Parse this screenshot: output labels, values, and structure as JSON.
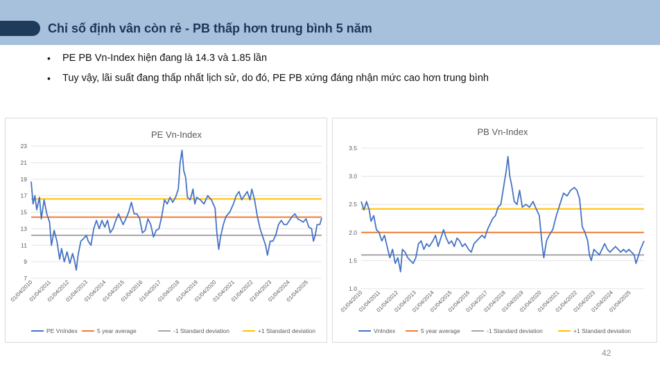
{
  "header": {
    "title": "Chỉ số định vân còn rẻ - PB thấp hơn trung bình 5 năm"
  },
  "bullets": [
    "PE PB Vn-Index hiện đang là 14.3 và 1.85 lần",
    "Tuy vậy, lãi suất đang thấp nhất lịch sử, do đó, PE PB xứng đáng nhận mức cao hơn trung bình"
  ],
  "page_number": "42",
  "colors": {
    "header_bg": "#a7c0dc",
    "header_tab": "#1f3b5c",
    "title": "#1a3558",
    "series": "#4472c4",
    "average": "#ed7d31",
    "minus_sd": "#a5a5a5",
    "plus_sd": "#ffc000"
  },
  "chart_data": [
    {
      "type": "line",
      "title": "PE Vn-Index",
      "xlabel": "",
      "ylabel": "",
      "ylim": [
        7,
        23
      ],
      "y_ticks": [
        "7",
        "9",
        "11",
        "13",
        "15",
        "17",
        "19",
        "21",
        "23"
      ],
      "x_ticks": [
        "01/04/2010",
        "01/04/2011",
        "01/04/2012",
        "01/04/2013",
        "01/04/2014",
        "01/04/2015",
        "01/04/2016",
        "01/04/2017",
        "01/04/2018",
        "01/04/2019",
        "01/04/2020",
        "01/04/2021",
        "01/04/2022",
        "01/04/2023",
        "01/04/2024",
        "01/04/2025"
      ],
      "x_range": [
        2010.0,
        2025.8
      ],
      "grid": "horizontal",
      "legend_position": "bottom",
      "series": [
        {
          "name": "PE VnIndex",
          "color": "#4472c4",
          "points": [
            [
              2010.0,
              18.7
            ],
            [
              2010.1,
              16.0
            ],
            [
              2010.2,
              17.0
            ],
            [
              2010.3,
              15.3
            ],
            [
              2010.45,
              16.8
            ],
            [
              2010.55,
              14.2
            ],
            [
              2010.7,
              16.5
            ],
            [
              2010.85,
              14.8
            ],
            [
              2011.0,
              13.8
            ],
            [
              2011.1,
              11.0
            ],
            [
              2011.25,
              12.8
            ],
            [
              2011.4,
              11.5
            ],
            [
              2011.55,
              9.3
            ],
            [
              2011.65,
              10.6
            ],
            [
              2011.8,
              9.0
            ],
            [
              2011.95,
              10.2
            ],
            [
              2012.1,
              8.8
            ],
            [
              2012.25,
              10.0
            ],
            [
              2012.35,
              9.2
            ],
            [
              2012.45,
              8.0
            ],
            [
              2012.55,
              9.8
            ],
            [
              2012.7,
              11.5
            ],
            [
              2012.85,
              11.8
            ],
            [
              2013.0,
              12.2
            ],
            [
              2013.1,
              11.5
            ],
            [
              2013.25,
              11.0
            ],
            [
              2013.4,
              13.0
            ],
            [
              2013.55,
              14.0
            ],
            [
              2013.7,
              13.0
            ],
            [
              2013.85,
              14.0
            ],
            [
              2014.0,
              13.2
            ],
            [
              2014.15,
              14.0
            ],
            [
              2014.3,
              12.5
            ],
            [
              2014.45,
              13.0
            ],
            [
              2014.6,
              14.0
            ],
            [
              2014.75,
              14.8
            ],
            [
              2014.9,
              14.0
            ],
            [
              2015.0,
              13.5
            ],
            [
              2015.15,
              14.2
            ],
            [
              2015.3,
              15.0
            ],
            [
              2015.45,
              16.2
            ],
            [
              2015.6,
              14.8
            ],
            [
              2015.75,
              14.8
            ],
            [
              2015.9,
              14.2
            ],
            [
              2016.05,
              12.5
            ],
            [
              2016.2,
              12.8
            ],
            [
              2016.35,
              14.2
            ],
            [
              2016.5,
              13.5
            ],
            [
              2016.65,
              12.0
            ],
            [
              2016.8,
              12.8
            ],
            [
              2016.95,
              13.0
            ],
            [
              2017.1,
              14.5
            ],
            [
              2017.25,
              16.5
            ],
            [
              2017.4,
              16.0
            ],
            [
              2017.55,
              16.8
            ],
            [
              2017.7,
              16.2
            ],
            [
              2017.85,
              16.8
            ],
            [
              2018.0,
              17.8
            ],
            [
              2018.1,
              21.0
            ],
            [
              2018.2,
              22.5
            ],
            [
              2018.3,
              20.0
            ],
            [
              2018.4,
              19.2
            ],
            [
              2018.5,
              16.8
            ],
            [
              2018.65,
              16.5
            ],
            [
              2018.8,
              17.8
            ],
            [
              2018.9,
              16.0
            ],
            [
              2019.0,
              16.8
            ],
            [
              2019.2,
              16.5
            ],
            [
              2019.4,
              16.0
            ],
            [
              2019.6,
              17.0
            ],
            [
              2019.8,
              16.5
            ],
            [
              2020.0,
              15.5
            ],
            [
              2020.1,
              12.5
            ],
            [
              2020.2,
              10.5
            ],
            [
              2020.3,
              12.0
            ],
            [
              2020.45,
              13.5
            ],
            [
              2020.6,
              14.5
            ],
            [
              2020.8,
              15.0
            ],
            [
              2021.0,
              16.0
            ],
            [
              2021.15,
              17.0
            ],
            [
              2021.3,
              17.5
            ],
            [
              2021.45,
              16.5
            ],
            [
              2021.6,
              17.0
            ],
            [
              2021.75,
              17.5
            ],
            [
              2021.9,
              16.5
            ],
            [
              2022.0,
              17.8
            ],
            [
              2022.15,
              16.5
            ],
            [
              2022.3,
              14.5
            ],
            [
              2022.45,
              13.0
            ],
            [
              2022.6,
              12.0
            ],
            [
              2022.75,
              11.0
            ],
            [
              2022.85,
              9.8
            ],
            [
              2023.0,
              11.5
            ],
            [
              2023.15,
              11.5
            ],
            [
              2023.3,
              12.2
            ],
            [
              2023.45,
              13.5
            ],
            [
              2023.6,
              14.0
            ],
            [
              2023.75,
              13.5
            ],
            [
              2023.9,
              13.5
            ],
            [
              2024.05,
              14.0
            ],
            [
              2024.2,
              14.5
            ],
            [
              2024.35,
              14.8
            ],
            [
              2024.5,
              14.2
            ],
            [
              2024.65,
              14.0
            ],
            [
              2024.8,
              13.8
            ],
            [
              2024.95,
              14.2
            ],
            [
              2025.1,
              13.2
            ],
            [
              2025.25,
              13.0
            ],
            [
              2025.35,
              11.5
            ],
            [
              2025.45,
              12.2
            ],
            [
              2025.55,
              13.5
            ],
            [
              2025.7,
              13.5
            ],
            [
              2025.8,
              14.3
            ]
          ]
        },
        {
          "name": "5 year average",
          "color": "#ed7d31",
          "value": 14.4
        },
        {
          "name": "-1 Standard deviation",
          "color": "#a5a5a5",
          "value": 12.2
        },
        {
          "name": "+1 Standard deviation",
          "color": "#ffc000",
          "value": 16.6
        }
      ]
    },
    {
      "type": "line",
      "title": "PB Vn-Index",
      "xlabel": "",
      "ylabel": "",
      "ylim": [
        1.0,
        3.5
      ],
      "y_ticks": [
        "1.0",
        "1.5",
        "2.0",
        "2.5",
        "3.0",
        "3.5"
      ],
      "x_ticks": [
        "01/04/2010",
        "01/04/2011",
        "01/04/2012",
        "01/04/2013",
        "01/04/2014",
        "01/04/2015",
        "01/04/2016",
        "01/04/2017",
        "01/04/2018",
        "01/04/2019",
        "01/04/2020",
        "01/04/2021",
        "01/04/2022",
        "01/04/2023",
        "01/04/2024",
        "01/04/2025"
      ],
      "x_range": [
        2010.0,
        2025.8
      ],
      "grid": "horizontal",
      "legend_position": "bottom",
      "series": [
        {
          "name": "VnIndex",
          "color": "#4472c4",
          "points": [
            [
              2010.0,
              2.55
            ],
            [
              2010.15,
              2.4
            ],
            [
              2010.3,
              2.55
            ],
            [
              2010.45,
              2.4
            ],
            [
              2010.55,
              2.2
            ],
            [
              2010.7,
              2.3
            ],
            [
              2010.85,
              2.05
            ],
            [
              2011.0,
              2.0
            ],
            [
              2011.15,
              1.85
            ],
            [
              2011.3,
              1.95
            ],
            [
              2011.45,
              1.75
            ],
            [
              2011.6,
              1.55
            ],
            [
              2011.75,
              1.7
            ],
            [
              2011.9,
              1.45
            ],
            [
              2012.05,
              1.55
            ],
            [
              2012.2,
              1.3
            ],
            [
              2012.3,
              1.7
            ],
            [
              2012.45,
              1.65
            ],
            [
              2012.6,
              1.55
            ],
            [
              2012.75,
              1.5
            ],
            [
              2012.9,
              1.45
            ],
            [
              2013.05,
              1.55
            ],
            [
              2013.2,
              1.8
            ],
            [
              2013.35,
              1.85
            ],
            [
              2013.5,
              1.7
            ],
            [
              2013.65,
              1.8
            ],
            [
              2013.8,
              1.75
            ],
            [
              2014.0,
              1.85
            ],
            [
              2014.15,
              1.95
            ],
            [
              2014.3,
              1.75
            ],
            [
              2014.45,
              1.9
            ],
            [
              2014.6,
              2.05
            ],
            [
              2014.75,
              1.9
            ],
            [
              2014.9,
              1.8
            ],
            [
              2015.05,
              1.85
            ],
            [
              2015.2,
              1.75
            ],
            [
              2015.35,
              1.9
            ],
            [
              2015.5,
              1.85
            ],
            [
              2015.65,
              1.75
            ],
            [
              2015.8,
              1.8
            ],
            [
              2016.0,
              1.7
            ],
            [
              2016.15,
              1.65
            ],
            [
              2016.3,
              1.8
            ],
            [
              2016.45,
              1.85
            ],
            [
              2016.6,
              1.9
            ],
            [
              2016.75,
              1.95
            ],
            [
              2016.9,
              1.9
            ],
            [
              2017.05,
              2.05
            ],
            [
              2017.2,
              2.15
            ],
            [
              2017.35,
              2.25
            ],
            [
              2017.5,
              2.3
            ],
            [
              2017.65,
              2.45
            ],
            [
              2017.8,
              2.5
            ],
            [
              2017.95,
              2.8
            ],
            [
              2018.1,
              3.1
            ],
            [
              2018.2,
              3.35
            ],
            [
              2018.3,
              3.0
            ],
            [
              2018.4,
              2.85
            ],
            [
              2018.55,
              2.55
            ],
            [
              2018.7,
              2.5
            ],
            [
              2018.85,
              2.75
            ],
            [
              2019.0,
              2.45
            ],
            [
              2019.2,
              2.5
            ],
            [
              2019.4,
              2.45
            ],
            [
              2019.6,
              2.55
            ],
            [
              2019.8,
              2.4
            ],
            [
              2019.95,
              2.3
            ],
            [
              2020.1,
              1.8
            ],
            [
              2020.2,
              1.55
            ],
            [
              2020.35,
              1.85
            ],
            [
              2020.5,
              1.95
            ],
            [
              2020.7,
              2.05
            ],
            [
              2020.9,
              2.3
            ],
            [
              2021.1,
              2.5
            ],
            [
              2021.3,
              2.7
            ],
            [
              2021.5,
              2.65
            ],
            [
              2021.7,
              2.75
            ],
            [
              2021.9,
              2.8
            ],
            [
              2022.05,
              2.75
            ],
            [
              2022.2,
              2.6
            ],
            [
              2022.35,
              2.1
            ],
            [
              2022.5,
              2.0
            ],
            [
              2022.65,
              1.85
            ],
            [
              2022.75,
              1.6
            ],
            [
              2022.85,
              1.5
            ],
            [
              2023.0,
              1.7
            ],
            [
              2023.15,
              1.65
            ],
            [
              2023.3,
              1.6
            ],
            [
              2023.45,
              1.7
            ],
            [
              2023.6,
              1.8
            ],
            [
              2023.75,
              1.7
            ],
            [
              2023.9,
              1.65
            ],
            [
              2024.05,
              1.7
            ],
            [
              2024.2,
              1.75
            ],
            [
              2024.35,
              1.7
            ],
            [
              2024.5,
              1.65
            ],
            [
              2024.65,
              1.7
            ],
            [
              2024.8,
              1.65
            ],
            [
              2024.95,
              1.7
            ],
            [
              2025.1,
              1.65
            ],
            [
              2025.25,
              1.6
            ],
            [
              2025.35,
              1.45
            ],
            [
              2025.45,
              1.55
            ],
            [
              2025.6,
              1.7
            ],
            [
              2025.8,
              1.85
            ]
          ]
        },
        {
          "name": "5 year average",
          "color": "#ed7d31",
          "value": 2.0
        },
        {
          "name": "-1 Standard deviation",
          "color": "#a5a5a5",
          "value": 1.6
        },
        {
          "name": "+1 Standard deviation",
          "color": "#ffc000",
          "value": 2.42
        }
      ]
    }
  ]
}
